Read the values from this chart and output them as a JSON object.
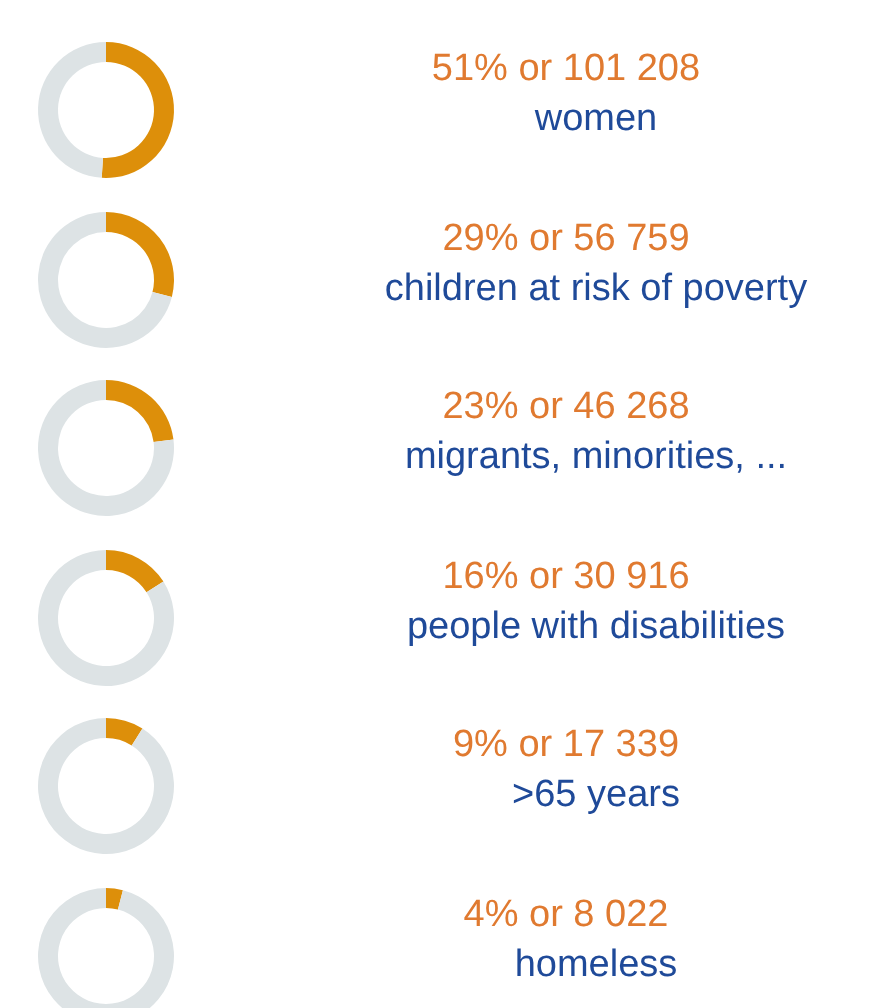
{
  "chart_data": [
    {
      "type": "donut",
      "title": "51% or 101 208",
      "subtitle": "women",
      "categories": [
        null,
        null
      ],
      "values": [
        51,
        49
      ],
      "colors": [
        "#dd8f0a",
        "#dde3e5"
      ]
    },
    {
      "type": "donut",
      "title": "29% or 56 759",
      "subtitle": "children at risk of poverty",
      "categories": [
        null,
        null
      ],
      "values": [
        29,
        71
      ],
      "colors": [
        "#dd8f0a",
        "#dde3e5"
      ]
    },
    {
      "type": "donut",
      "title": "23% or 46 268",
      "subtitle": "migrants, minorities, ...",
      "categories": [
        null,
        null
      ],
      "values": [
        23,
        77
      ],
      "colors": [
        "#dd8f0a",
        "#dde3e5"
      ]
    },
    {
      "type": "donut",
      "title": "16% or 30 916",
      "subtitle": "people with disabilities",
      "categories": [
        null,
        null
      ],
      "values": [
        16,
        84
      ],
      "colors": [
        "#dd8f0a",
        "#dde3e5"
      ]
    },
    {
      "type": "donut",
      "title": "9% or 17 339",
      "subtitle": ">65 years",
      "categories": [
        null,
        null
      ],
      "values": [
        9,
        91
      ],
      "colors": [
        "#dd8f0a",
        "#dde3e5"
      ]
    },
    {
      "type": "donut",
      "title": "4% or 8 022",
      "subtitle": "homeless",
      "categories": [
        null,
        null
      ],
      "values": [
        4,
        96
      ],
      "colors": [
        "#dd8f0a",
        "#dde3e5"
      ]
    }
  ]
}
